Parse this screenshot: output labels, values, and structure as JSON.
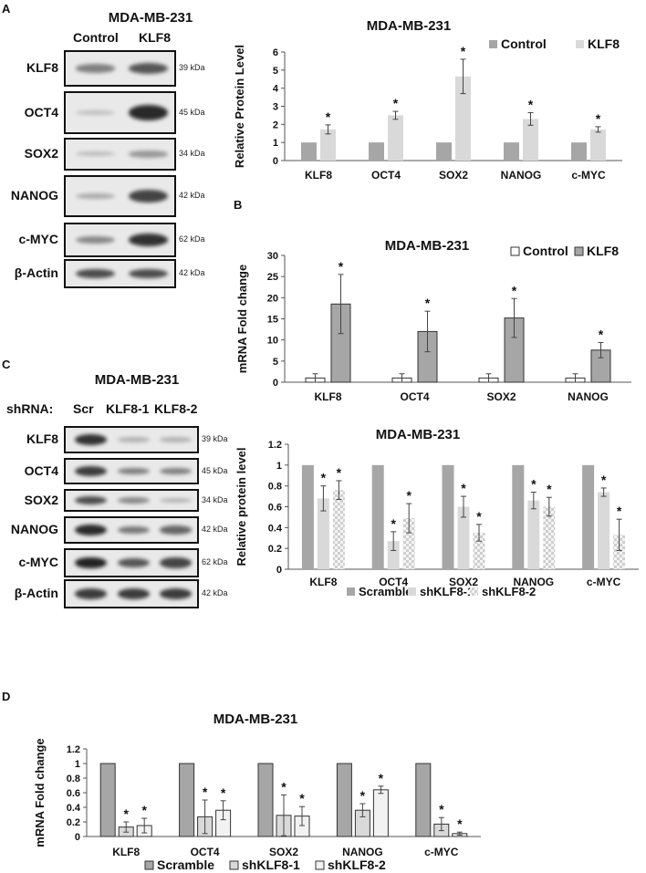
{
  "panels": {
    "A": {
      "letter": "A",
      "blot": {
        "title": "MDA-MB-231",
        "lanes": [
          "Control",
          "KLF8"
        ],
        "rows": [
          {
            "label": "KLF8",
            "kda": "39 kDa",
            "intensity": [
              0.45,
              0.7
            ]
          },
          {
            "label": "OCT4",
            "kda": "45 kDa",
            "intensity": [
              0.08,
              0.95
            ]
          },
          {
            "label": "SOX2",
            "kda": "34 kDa",
            "intensity": [
              0.1,
              0.3
            ]
          },
          {
            "label": "NANOG",
            "kda": "42 kDa",
            "intensity": [
              0.2,
              0.8
            ]
          },
          {
            "label": "c-MYC",
            "kda": "62 kDa",
            "intensity": [
              0.4,
              0.9
            ]
          },
          {
            "label": "β-Actin",
            "kda": "42 kDa",
            "intensity": [
              0.75,
              0.75
            ]
          }
        ]
      }
    },
    "B": {
      "letter": "B"
    },
    "C": {
      "letter": "C",
      "blot": {
        "title": "MDA-MB-231",
        "shrna_label": "shRNA:",
        "lanes": [
          "Scr",
          "KLF8-1",
          "KLF8-2"
        ],
        "rows": [
          {
            "label": "KLF8",
            "kda": "39 kDa",
            "intensity": [
              0.9,
              0.15,
              0.15
            ]
          },
          {
            "label": "OCT4",
            "kda": "45 kDa",
            "intensity": [
              0.85,
              0.45,
              0.45
            ]
          },
          {
            "label": "SOX2",
            "kda": "34 kDa",
            "intensity": [
              0.75,
              0.4,
              0.15
            ]
          },
          {
            "label": "NANOG",
            "kda": "42 kDa",
            "intensity": [
              0.95,
              0.5,
              0.6
            ]
          },
          {
            "label": "c-MYC",
            "kda": "62 kDa",
            "intensity": [
              1.0,
              0.7,
              0.8
            ]
          },
          {
            "label": "β-Actin",
            "kda": "42 kDa",
            "intensity": [
              0.85,
              0.85,
              0.85
            ]
          }
        ]
      }
    },
    "D": {
      "letter": "D"
    }
  },
  "chart_data": [
    {
      "id": "A-chart",
      "type": "bar",
      "title": "MDA-MB-231",
      "xlabel": "",
      "ylabel": "Relative Protein Level",
      "ylim": [
        0,
        6
      ],
      "yticks": [
        "0",
        "1",
        "2",
        "3",
        "4",
        "5",
        "6"
      ],
      "categories": [
        "KLF8",
        "OCT4",
        "SOX2",
        "NANOG",
        "c-MYC"
      ],
      "legend_position": "top-right",
      "series": [
        {
          "name": "Control",
          "color": "#a6a6a6",
          "values": [
            1,
            1,
            1,
            1,
            1
          ],
          "errors": [
            0,
            0,
            0,
            0,
            0
          ],
          "sig": [
            false,
            false,
            false,
            false,
            false
          ]
        },
        {
          "name": "KLF8",
          "color": "#d9d9d9",
          "values": [
            1.72,
            2.5,
            4.65,
            2.3,
            1.72
          ],
          "errors": [
            0.25,
            0.22,
            0.95,
            0.35,
            0.15
          ],
          "sig": [
            true,
            true,
            true,
            true,
            true
          ]
        }
      ]
    },
    {
      "id": "B-chart",
      "type": "bar",
      "title": "MDA-MB-231",
      "xlabel": "",
      "ylabel": "mRNA Fold change",
      "ylim": [
        0,
        30
      ],
      "yticks": [
        "0",
        "5",
        "10",
        "15",
        "20",
        "25",
        "30"
      ],
      "categories": [
        "KLF8",
        "OCT4",
        "SOX2",
        "NANOG"
      ],
      "legend_position": "top-right",
      "series": [
        {
          "name": "Control",
          "color": "#ffffff",
          "values": [
            1,
            1,
            1,
            1
          ],
          "errors": [
            1,
            1,
            1,
            1
          ],
          "sig": [
            false,
            false,
            false,
            false
          ]
        },
        {
          "name": "KLF8",
          "color": "#a6a6a6",
          "values": [
            18.5,
            12,
            15.2,
            7.6
          ],
          "errors": [
            7,
            4.8,
            4.6,
            1.8
          ],
          "sig": [
            true,
            true,
            true,
            true
          ]
        }
      ]
    },
    {
      "id": "C-chart",
      "type": "bar",
      "title": "MDA-MB-231",
      "xlabel": "",
      "ylabel": "Relative protein level",
      "ylim": [
        0,
        1.2
      ],
      "yticks": [
        "0",
        "0.2",
        "0.4",
        "0.6",
        "0.8",
        "1",
        "1.2"
      ],
      "categories": [
        "KLF8",
        "OCT4",
        "SOX2",
        "NANOG",
        "c-MYC"
      ],
      "legend_position": "bottom",
      "series": [
        {
          "name": "Scramble",
          "color": "#a6a6a6",
          "values": [
            1,
            1,
            1,
            1,
            1
          ],
          "errors": [
            0,
            0,
            0,
            0,
            0
          ],
          "sig": [
            false,
            false,
            false,
            false,
            false
          ]
        },
        {
          "name": "shKLF8-1",
          "color": "#d9d9d9",
          "values": [
            0.68,
            0.27,
            0.6,
            0.66,
            0.74
          ],
          "errors": [
            0.12,
            0.09,
            0.1,
            0.08,
            0.04
          ],
          "sig": [
            true,
            true,
            true,
            true,
            true
          ]
        },
        {
          "name": "shKLF8-2",
          "color": "#e6e6e6",
          "pattern": "checker",
          "values": [
            0.76,
            0.49,
            0.35,
            0.6,
            0.33
          ],
          "errors": [
            0.09,
            0.14,
            0.08,
            0.09,
            0.15
          ],
          "sig": [
            true,
            true,
            true,
            true,
            true
          ]
        }
      ]
    },
    {
      "id": "D-chart",
      "type": "bar",
      "title": "MDA-MB-231",
      "xlabel": "",
      "ylabel": "mRNA Fold change",
      "ylim": [
        0,
        1.2
      ],
      "yticks": [
        "0",
        "0.2",
        "0.4",
        "0.6",
        "0.8",
        "1",
        "1.2"
      ],
      "categories": [
        "KLF8",
        "OCT4",
        "SOX2",
        "NANOG",
        "c-MYC"
      ],
      "legend_position": "bottom",
      "series": [
        {
          "name": "Scramble",
          "color": "#a6a6a6",
          "values": [
            1,
            1,
            1,
            1,
            1
          ],
          "errors": [
            0,
            0,
            0,
            0,
            0
          ],
          "sig": [
            false,
            false,
            false,
            false,
            false
          ]
        },
        {
          "name": "shKLF8-1",
          "color": "#d9d9d9",
          "values": [
            0.13,
            0.27,
            0.29,
            0.36,
            0.17
          ],
          "errors": [
            0.07,
            0.23,
            0.28,
            0.09,
            0.09
          ],
          "sig": [
            true,
            true,
            true,
            true,
            true
          ]
        },
        {
          "name": "shKLF8-2",
          "color": "#f2f2f2",
          "values": [
            0.15,
            0.36,
            0.28,
            0.64,
            0.04
          ],
          "errors": [
            0.1,
            0.13,
            0.13,
            0.05,
            0.02
          ],
          "sig": [
            true,
            true,
            true,
            true,
            true
          ]
        }
      ]
    }
  ]
}
